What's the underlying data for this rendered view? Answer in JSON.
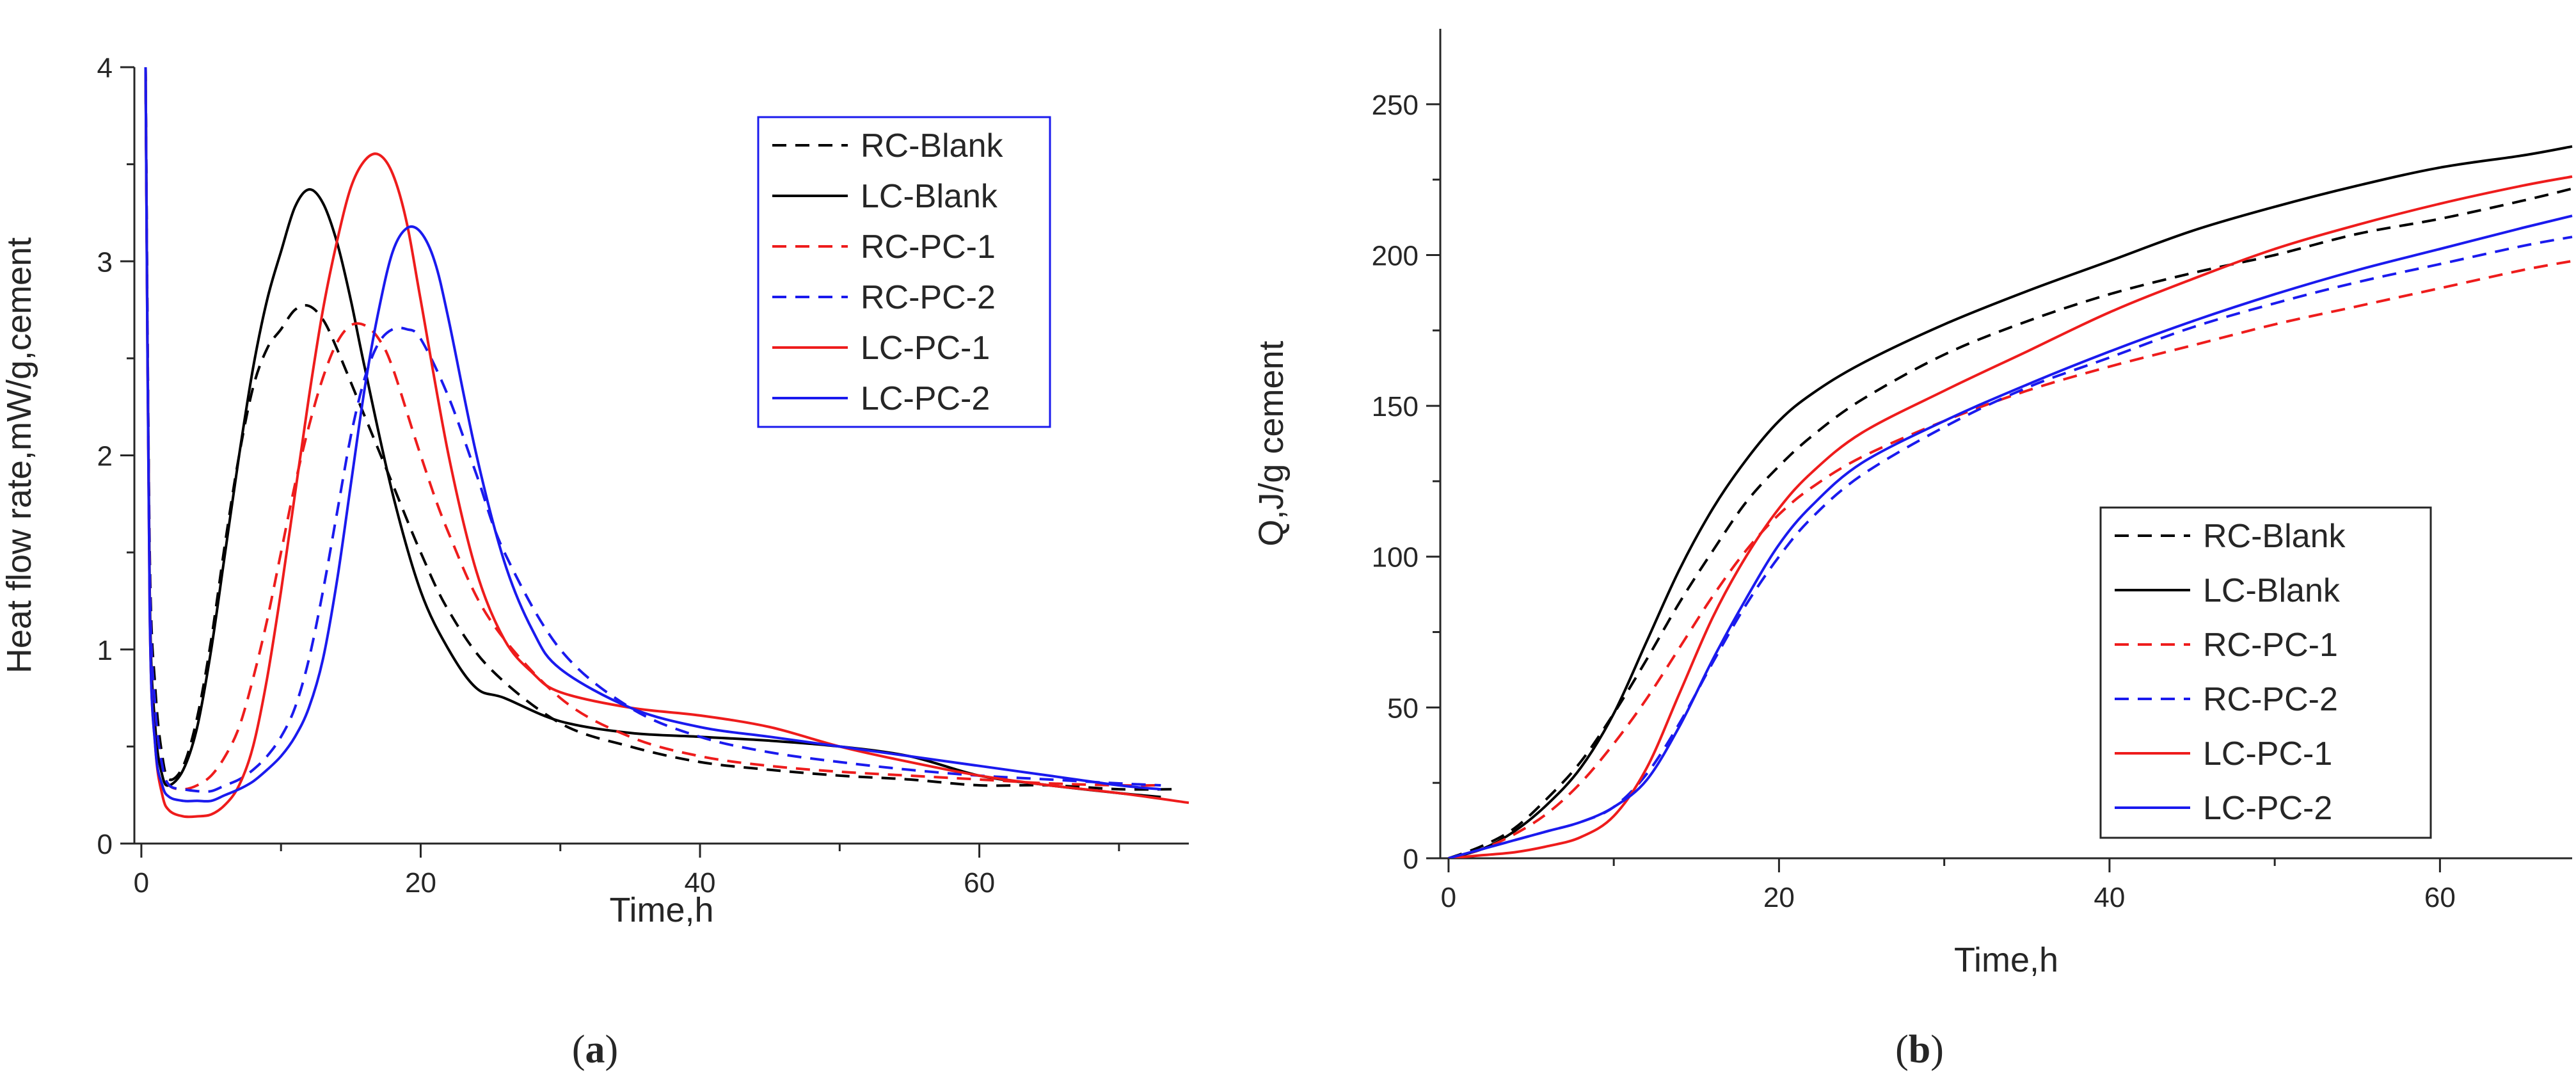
{
  "chart_data": [
    {
      "type": "line",
      "panel_label": "a",
      "title": "",
      "xlabel": "Time,h",
      "ylabel": "Heat flow rate,mW/g,cement",
      "xlim": [
        -0.5,
        75
      ],
      "ylim": [
        0,
        4
      ],
      "xticks": [
        0,
        20,
        40,
        60
      ],
      "yticks": [
        0,
        1,
        2,
        3,
        4
      ],
      "grid": false,
      "legend_position": "top-right",
      "series": [
        {
          "name": "RC-Blank",
          "color": "#000000",
          "dash": "dashed",
          "x": [
            0.3,
            0.6,
            1,
            1.5,
            2,
            3,
            4,
            5,
            6,
            7,
            8,
            9,
            10,
            11,
            12,
            13,
            14,
            16,
            18,
            20,
            22,
            25,
            30,
            35,
            40,
            45,
            50,
            55,
            60,
            65,
            70,
            74
          ],
          "y": [
            4,
            1.5,
            0.8,
            0.45,
            0.33,
            0.4,
            0.65,
            1.05,
            1.55,
            2.0,
            2.35,
            2.55,
            2.65,
            2.75,
            2.77,
            2.7,
            2.55,
            2.2,
            1.85,
            1.5,
            1.2,
            0.9,
            0.62,
            0.5,
            0.42,
            0.38,
            0.35,
            0.33,
            0.3,
            0.3,
            0.28,
            0.28
          ]
        },
        {
          "name": "LC-Blank",
          "color": "#000000",
          "dash": "solid",
          "x": [
            0.3,
            0.6,
            1,
            1.5,
            2,
            3,
            4,
            5,
            6,
            7,
            8,
            9,
            10,
            11,
            12,
            13,
            14,
            15,
            16,
            18,
            20,
            22,
            24,
            26,
            30,
            35,
            40,
            45,
            50,
            55,
            60,
            65,
            70,
            73
          ],
          "y": [
            4,
            1.3,
            0.6,
            0.35,
            0.3,
            0.38,
            0.6,
            1.0,
            1.5,
            2.0,
            2.45,
            2.8,
            3.05,
            3.28,
            3.37,
            3.3,
            3.1,
            2.8,
            2.45,
            1.8,
            1.3,
            1.0,
            0.8,
            0.75,
            0.63,
            0.57,
            0.55,
            0.53,
            0.5,
            0.45,
            0.35,
            0.3,
            0.26,
            0.24
          ]
        },
        {
          "name": "RC-PC-1",
          "color": "#ee1c1c",
          "dash": "dashed",
          "x": [
            0.3,
            0.6,
            1,
            1.5,
            2,
            3,
            4,
            5,
            6,
            7,
            8,
            9,
            10,
            11,
            12,
            13,
            14,
            15,
            16,
            17,
            18,
            20,
            22,
            25,
            30,
            35,
            40,
            45,
            50,
            55,
            60,
            65,
            70,
            73
          ],
          "y": [
            4,
            1.4,
            0.7,
            0.4,
            0.3,
            0.28,
            0.3,
            0.35,
            0.45,
            0.6,
            0.85,
            1.15,
            1.5,
            1.85,
            2.15,
            2.4,
            2.58,
            2.67,
            2.67,
            2.6,
            2.45,
            2.0,
            1.6,
            1.15,
            0.75,
            0.55,
            0.45,
            0.4,
            0.37,
            0.35,
            0.33,
            0.31,
            0.3,
            0.3
          ]
        },
        {
          "name": "RC-PC-2",
          "color": "#1a1aee",
          "dash": "dashed",
          "x": [
            0.3,
            0.6,
            1,
            1.5,
            2,
            3,
            4,
            5,
            6,
            7,
            8,
            9,
            10,
            11,
            12,
            13,
            14,
            15,
            16,
            17,
            18,
            19,
            20,
            22,
            24,
            26,
            30,
            35,
            40,
            45,
            50,
            55,
            60,
            65,
            70,
            73
          ],
          "y": [
            4,
            1.4,
            0.7,
            0.4,
            0.3,
            0.28,
            0.27,
            0.27,
            0.3,
            0.33,
            0.38,
            0.45,
            0.55,
            0.7,
            0.95,
            1.3,
            1.7,
            2.1,
            2.4,
            2.58,
            2.65,
            2.65,
            2.6,
            2.3,
            1.9,
            1.5,
            1.0,
            0.7,
            0.55,
            0.47,
            0.42,
            0.38,
            0.35,
            0.33,
            0.31,
            0.3
          ]
        },
        {
          "name": "LC-PC-1",
          "color": "#ee1c1c",
          "dash": "solid",
          "x": [
            0.3,
            0.6,
            1,
            1.5,
            2,
            3,
            4,
            5,
            6,
            7,
            8,
            9,
            10,
            11,
            12,
            13,
            14,
            15,
            16,
            17,
            18,
            19,
            20,
            22,
            24,
            26,
            28,
            30,
            35,
            40,
            45,
            50,
            55,
            60,
            65,
            70,
            75
          ],
          "y": [
            4,
            1.2,
            0.5,
            0.25,
            0.17,
            0.14,
            0.14,
            0.15,
            0.2,
            0.3,
            0.5,
            0.85,
            1.3,
            1.8,
            2.3,
            2.75,
            3.1,
            3.38,
            3.52,
            3.55,
            3.45,
            3.2,
            2.8,
            2.0,
            1.4,
            1.05,
            0.88,
            0.78,
            0.7,
            0.66,
            0.6,
            0.5,
            0.42,
            0.35,
            0.3,
            0.26,
            0.21
          ]
        },
        {
          "name": "LC-PC-2",
          "color": "#1a1aee",
          "dash": "solid",
          "x": [
            0.3,
            0.6,
            1,
            1.5,
            2,
            3,
            4,
            5,
            6,
            7,
            8,
            9,
            10,
            11,
            12,
            13,
            14,
            15,
            16,
            17,
            18,
            19,
            20,
            21,
            22,
            24,
            26,
            28,
            30,
            35,
            40,
            45,
            50,
            55,
            60,
            65,
            70,
            73
          ],
          "y": [
            4,
            1.2,
            0.5,
            0.3,
            0.24,
            0.22,
            0.22,
            0.22,
            0.25,
            0.28,
            0.32,
            0.38,
            0.45,
            0.55,
            0.7,
            0.95,
            1.35,
            1.85,
            2.35,
            2.75,
            3.05,
            3.17,
            3.15,
            3.0,
            2.7,
            2.0,
            1.45,
            1.1,
            0.9,
            0.7,
            0.6,
            0.55,
            0.5,
            0.45,
            0.4,
            0.35,
            0.3,
            0.28
          ]
        }
      ]
    },
    {
      "type": "line",
      "panel_label": "b",
      "title": "",
      "xlabel": "Time,h",
      "ylabel": "Q,J/g cement",
      "xlim": [
        -0.5,
        68
      ],
      "ylim": [
        0,
        275
      ],
      "xticks": [
        0,
        20,
        40,
        60
      ],
      "yticks": [
        0,
        50,
        100,
        150,
        200,
        250
      ],
      "grid": false,
      "legend_position": "bottom-right",
      "series": [
        {
          "name": "RC-Blank",
          "color": "#000000",
          "dash": "dashed",
          "x": [
            0,
            2,
            4,
            6,
            8,
            10,
            12,
            14,
            16,
            18,
            20,
            22,
            25,
            30,
            35,
            40,
            45,
            50,
            55,
            60,
            65,
            68
          ],
          "y": [
            0,
            4,
            10,
            20,
            32,
            48,
            66,
            85,
            102,
            118,
            130,
            140,
            152,
            167,
            178,
            187,
            194,
            200,
            207,
            212,
            218,
            222
          ]
        },
        {
          "name": "LC-Blank",
          "color": "#000000",
          "dash": "solid",
          "x": [
            0,
            2,
            4,
            6,
            8,
            10,
            12,
            14,
            16,
            18,
            20,
            22,
            25,
            30,
            35,
            40,
            45,
            50,
            55,
            60,
            65,
            68
          ],
          "y": [
            0,
            3,
            9,
            18,
            30,
            48,
            72,
            96,
            116,
            132,
            145,
            154,
            164,
            177,
            188,
            198,
            208,
            216,
            223,
            229,
            233,
            236
          ]
        },
        {
          "name": "RC-PC-1",
          "color": "#ee1c1c",
          "dash": "dashed",
          "x": [
            0,
            2,
            4,
            6,
            8,
            10,
            12,
            14,
            16,
            18,
            20,
            22,
            25,
            30,
            35,
            40,
            45,
            50,
            55,
            60,
            65,
            68
          ],
          "y": [
            0,
            3,
            8,
            15,
            25,
            38,
            53,
            70,
            87,
            102,
            114,
            123,
            133,
            145,
            155,
            163,
            170,
            177,
            183,
            189,
            195,
            198
          ]
        },
        {
          "name": "RC-PC-2",
          "color": "#1a1aee",
          "dash": "dashed",
          "x": [
            0,
            2,
            4,
            6,
            8,
            10,
            12,
            14,
            16,
            18,
            20,
            22,
            25,
            30,
            35,
            40,
            45,
            50,
            55,
            60,
            65,
            68
          ],
          "y": [
            0,
            3,
            6,
            9,
            12,
            17,
            28,
            45,
            65,
            84,
            100,
            113,
            127,
            143,
            156,
            166,
            176,
            184,
            191,
            197,
            203,
            206
          ]
        },
        {
          "name": "LC-PC-1",
          "color": "#ee1c1c",
          "dash": "solid",
          "x": [
            0,
            2,
            4,
            6,
            8,
            10,
            12,
            14,
            16,
            18,
            20,
            22,
            25,
            30,
            35,
            40,
            45,
            50,
            55,
            60,
            65,
            68
          ],
          "y": [
            0,
            1,
            2,
            4,
            7,
            14,
            30,
            55,
            80,
            100,
            116,
            128,
            141,
            155,
            168,
            181,
            192,
            202,
            210,
            217,
            223,
            226
          ]
        },
        {
          "name": "LC-PC-2",
          "color": "#1a1aee",
          "dash": "solid",
          "x": [
            0,
            2,
            4,
            6,
            8,
            10,
            12,
            14,
            16,
            18,
            20,
            22,
            25,
            30,
            35,
            40,
            45,
            50,
            55,
            60,
            65,
            68
          ],
          "y": [
            0,
            3,
            6,
            9,
            12,
            17,
            26,
            44,
            66,
            86,
            104,
            117,
            131,
            145,
            157,
            168,
            178,
            187,
            195,
            202,
            209,
            213
          ]
        }
      ]
    }
  ]
}
